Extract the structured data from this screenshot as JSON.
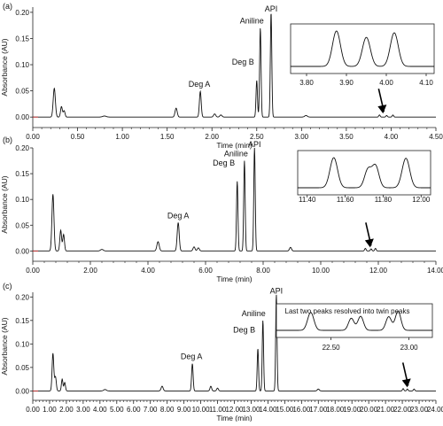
{
  "colors": {
    "trace": "#111111",
    "axis": "#222222",
    "tick_text": "#111111",
    "background": "#ffffff"
  },
  "chart_data": [
    {
      "type": "line",
      "panel_label": "(a)",
      "xlabel": "Time (min)",
      "ylabel": "Absorbance (AU)",
      "xlim": [
        0.0,
        4.5
      ],
      "ylim": [
        -0.02,
        0.21
      ],
      "xticks": [
        "0.00",
        "0.50",
        "1.00",
        "1.50",
        "2.00",
        "2.50",
        "3.00",
        "3.50",
        "4.00",
        "4.50"
      ],
      "yticks": [
        "0.00",
        "0.05",
        "0.10",
        "0.15",
        "0.20"
      ],
      "peaks": [
        {
          "t": 0.24,
          "h": 0.055,
          "w": 0.012
        },
        {
          "t": 0.32,
          "h": 0.02,
          "w": 0.01
        },
        {
          "t": 0.35,
          "h": 0.012,
          "w": 0.01
        },
        {
          "t": 0.8,
          "h": 0.002,
          "w": 0.02
        },
        {
          "t": 1.6,
          "h": 0.017,
          "w": 0.012
        },
        {
          "t": 1.87,
          "h": 0.049,
          "w": 0.01
        },
        {
          "t": 2.03,
          "h": 0.006,
          "w": 0.012
        },
        {
          "t": 2.1,
          "h": 0.004,
          "w": 0.012
        },
        {
          "t": 2.5,
          "h": 0.07,
          "w": 0.008
        },
        {
          "t": 2.54,
          "h": 0.17,
          "w": 0.008
        },
        {
          "t": 2.66,
          "h": 0.2,
          "w": 0.008
        },
        {
          "t": 3.05,
          "h": 0.003,
          "w": 0.015
        },
        {
          "t": 3.87,
          "h": 0.004,
          "w": 0.008
        },
        {
          "t": 3.95,
          "h": 0.003,
          "w": 0.008
        },
        {
          "t": 4.02,
          "h": 0.004,
          "w": 0.008
        }
      ],
      "peak_labels": [
        {
          "text": "Deg A",
          "t": 1.86
        },
        {
          "text": "Deg B",
          "t": 2.49
        },
        {
          "text": "Aniline",
          "t": 2.54
        },
        {
          "text": "API",
          "t": 2.66
        }
      ],
      "arrow_t": 3.92,
      "inset": {
        "xlim": [
          3.76,
          4.12
        ],
        "xticks": [
          "3.80",
          "3.90",
          "4.00",
          "4.10"
        ],
        "caption": "",
        "peaks": [
          {
            "t": 3.875,
            "h": 1.0,
            "w": 0.01
          },
          {
            "t": 3.95,
            "h": 0.82,
            "w": 0.01
          },
          {
            "t": 4.02,
            "h": 0.95,
            "w": 0.01
          }
        ]
      }
    },
    {
      "type": "line",
      "panel_label": "(b)",
      "xlabel": "Time (min)",
      "ylabel": "Absorbance (AU)",
      "xlim": [
        0.0,
        14.0
      ],
      "ylim": [
        -0.02,
        0.2
      ],
      "xticks": [
        "0.00",
        "2.00",
        "4.00",
        "6.00",
        "8.00",
        "10.00",
        "12.00",
        "14.00"
      ],
      "yticks": [
        "0.00",
        "0.05",
        "0.10",
        "0.15",
        "0.20"
      ],
      "peaks": [
        {
          "t": 0.7,
          "h": 0.11,
          "w": 0.035
        },
        {
          "t": 0.97,
          "h": 0.04,
          "w": 0.03
        },
        {
          "t": 1.07,
          "h": 0.032,
          "w": 0.03
        },
        {
          "t": 2.4,
          "h": 0.003,
          "w": 0.05
        },
        {
          "t": 4.35,
          "h": 0.018,
          "w": 0.04
        },
        {
          "t": 5.05,
          "h": 0.055,
          "w": 0.035
        },
        {
          "t": 5.6,
          "h": 0.008,
          "w": 0.035
        },
        {
          "t": 5.75,
          "h": 0.006,
          "w": 0.035
        },
        {
          "t": 7.1,
          "h": 0.135,
          "w": 0.025
        },
        {
          "t": 7.35,
          "h": 0.175,
          "w": 0.025
        },
        {
          "t": 7.7,
          "h": 0.2,
          "w": 0.025
        },
        {
          "t": 8.95,
          "h": 0.007,
          "w": 0.035
        },
        {
          "t": 11.55,
          "h": 0.005,
          "w": 0.025
        },
        {
          "t": 11.75,
          "h": 0.004,
          "w": 0.025
        },
        {
          "t": 11.9,
          "h": 0.005,
          "w": 0.025
        }
      ],
      "peak_labels": [
        {
          "text": "Deg A",
          "t": 5.05
        },
        {
          "text": "Deg B",
          "t": 7.08
        },
        {
          "text": "Aniline",
          "t": 7.35
        },
        {
          "text": "API",
          "t": 7.7
        }
      ],
      "arrow_t": 11.75,
      "inset": {
        "xlim": [
          11.35,
          12.05
        ],
        "xticks": [
          "11.40",
          "11.60",
          "11.80",
          "12.00"
        ],
        "caption": "",
        "peaks": [
          {
            "t": 11.54,
            "h": 1.0,
            "w": 0.02
          },
          {
            "t": 11.72,
            "h": 0.6,
            "w": 0.018
          },
          {
            "t": 11.76,
            "h": 0.72,
            "w": 0.018
          },
          {
            "t": 11.92,
            "h": 0.98,
            "w": 0.02
          }
        ]
      }
    },
    {
      "type": "line",
      "panel_label": "(c)",
      "xlabel": "Time (min)",
      "ylabel": "Absorbance (AU)",
      "xlim": [
        0.0,
        24.0
      ],
      "ylim": [
        -0.02,
        0.21
      ],
      "xticks": [
        "0.00",
        "1.00",
        "2.00",
        "3.00",
        "4.00",
        "5.00",
        "6.00",
        "7.00",
        "8.00",
        "9.00",
        "10.00",
        "11.00",
        "12.00",
        "13.00",
        "14.00",
        "15.00",
        "16.00",
        "17.00",
        "18.00",
        "19.00",
        "20.00",
        "21.00",
        "22.00",
        "23.00",
        "24.00"
      ],
      "yticks": [
        "0.00",
        "0.05",
        "0.10",
        "0.15",
        "0.20"
      ],
      "peaks": [
        {
          "t": 1.2,
          "h": 0.08,
          "w": 0.05
        },
        {
          "t": 1.35,
          "h": 0.03,
          "w": 0.05
        },
        {
          "t": 1.75,
          "h": 0.025,
          "w": 0.045
        },
        {
          "t": 1.9,
          "h": 0.018,
          "w": 0.045
        },
        {
          "t": 4.3,
          "h": 0.003,
          "w": 0.08
        },
        {
          "t": 7.7,
          "h": 0.01,
          "w": 0.06
        },
        {
          "t": 9.5,
          "h": 0.058,
          "w": 0.045
        },
        {
          "t": 10.6,
          "h": 0.01,
          "w": 0.05
        },
        {
          "t": 11.0,
          "h": 0.006,
          "w": 0.05
        },
        {
          "t": 13.4,
          "h": 0.09,
          "w": 0.04
        },
        {
          "t": 13.7,
          "h": 0.15,
          "w": 0.04
        },
        {
          "t": 14.5,
          "h": 0.205,
          "w": 0.04
        },
        {
          "t": 17.0,
          "h": 0.004,
          "w": 0.06
        },
        {
          "t": 22.05,
          "h": 0.005,
          "w": 0.04
        },
        {
          "t": 22.3,
          "h": 0.004,
          "w": 0.04
        },
        {
          "t": 22.7,
          "h": 0.004,
          "w": 0.04
        }
      ],
      "peak_labels": [
        {
          "text": "Deg A",
          "t": 9.45
        },
        {
          "text": "Deg B",
          "t": 13.35
        },
        {
          "text": "Aniline",
          "t": 13.65
        },
        {
          "text": "API",
          "t": 14.5
        }
      ],
      "arrow_t": 22.35,
      "inset": {
        "xlim": [
          22.15,
          23.15
        ],
        "xticks": [
          "22.50",
          "23.00"
        ],
        "caption": "Last two peaks resolved into twin peaks",
        "peaks": [
          {
            "t": 22.37,
            "h": 0.92,
            "w": 0.02
          },
          {
            "t": 22.63,
            "h": 0.62,
            "w": 0.018
          },
          {
            "t": 22.69,
            "h": 0.72,
            "w": 0.018
          },
          {
            "t": 22.87,
            "h": 0.7,
            "w": 0.018
          },
          {
            "t": 22.93,
            "h": 0.98,
            "w": 0.018
          }
        ]
      }
    }
  ]
}
